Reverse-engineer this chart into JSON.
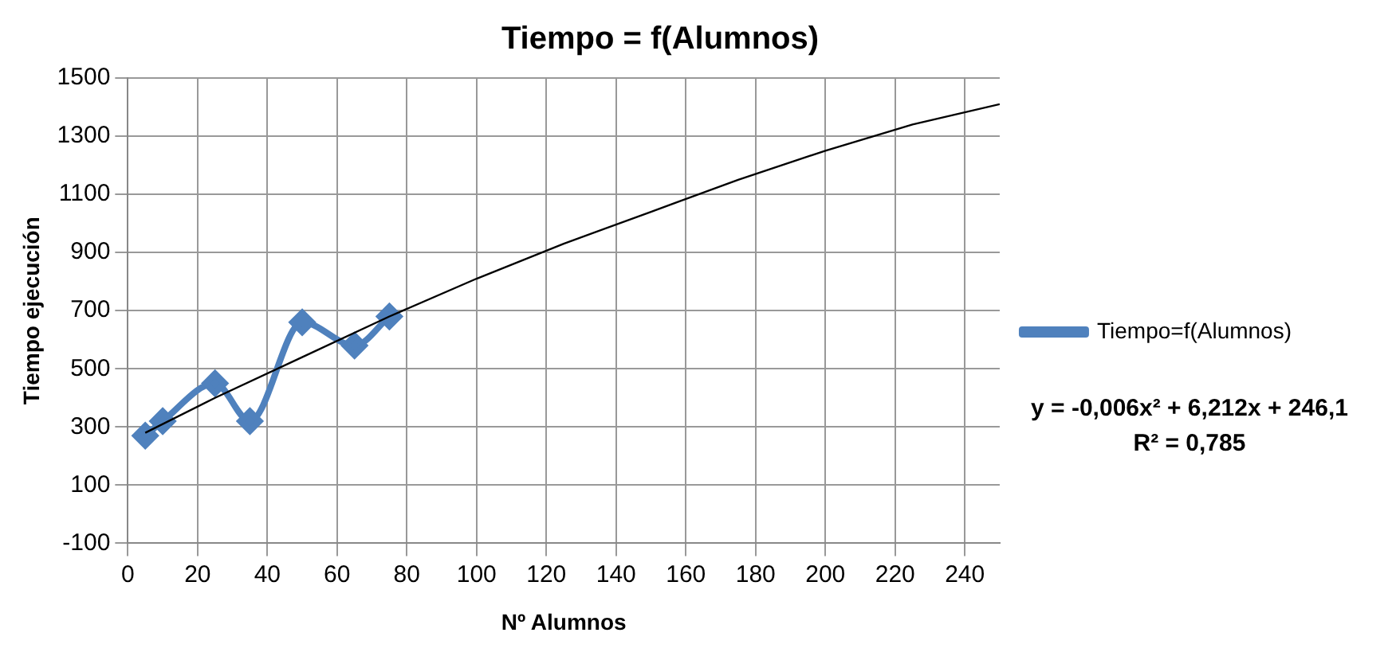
{
  "chart_data": {
    "type": "line",
    "title": "Tiempo = f(Alumnos)",
    "xlabel": "Nº Alumnos",
    "ylabel": "Tiempo ejecución",
    "xlim": [
      0,
      250
    ],
    "xticks": [
      0,
      20,
      40,
      60,
      80,
      100,
      120,
      140,
      160,
      180,
      200,
      220,
      240
    ],
    "ylim": [
      -100,
      1500
    ],
    "yticks": [
      -100,
      100,
      300,
      500,
      700,
      900,
      1100,
      1300,
      1500
    ],
    "grid": true,
    "legend": "right",
    "series": [
      {
        "name": "Tiempo=f(Alumnos)",
        "color": "#4f81bd",
        "marker": "diamond",
        "x": [
          5,
          10,
          25,
          35,
          50,
          65,
          75
        ],
        "values": [
          270,
          320,
          450,
          320,
          660,
          580,
          680
        ]
      },
      {
        "color": "#000000",
        "marker": "none",
        "x": [
          5,
          25,
          50,
          75,
          100,
          125,
          150,
          175,
          200,
          225,
          250
        ],
        "values": [
          280,
          400,
          540,
          680,
          810,
          930,
          1040,
          1150,
          1250,
          1340,
          1410
        ]
      }
    ],
    "annotations": [
      "y = -0,006x² + 6,212x + 246,1",
      "R² = 0,785"
    ]
  }
}
